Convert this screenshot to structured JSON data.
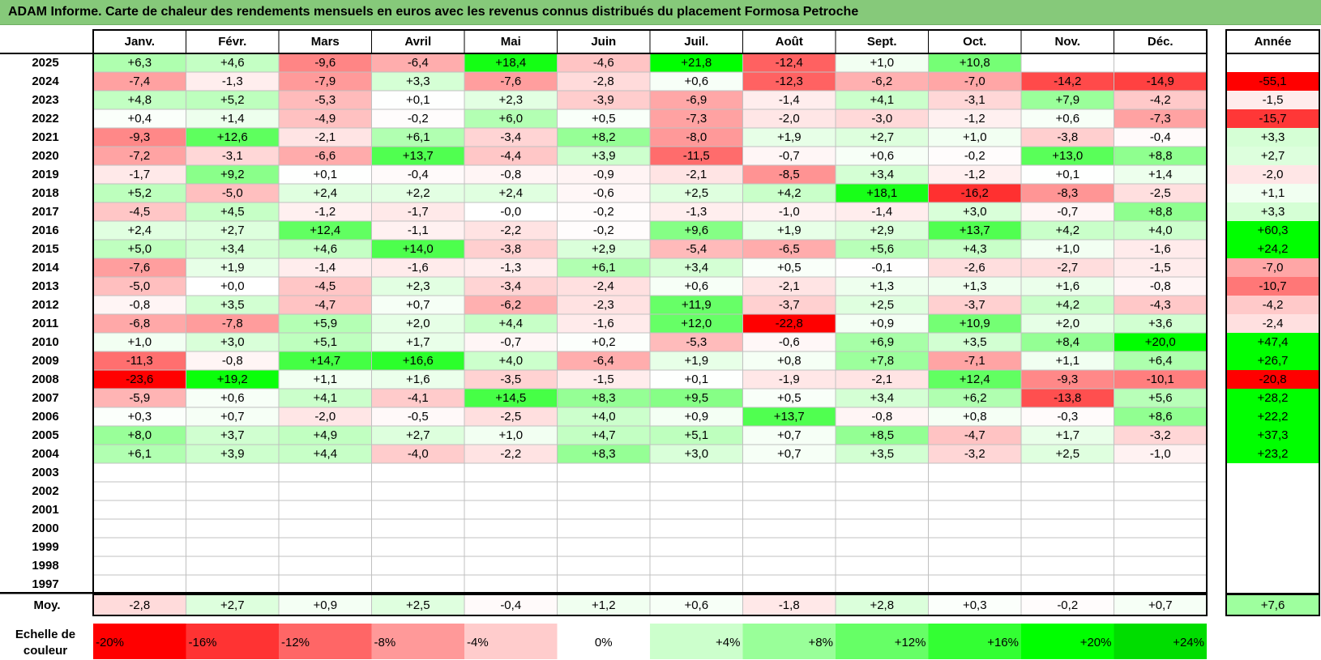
{
  "title": "ADAM Informe. Carte de chaleur des rendements mensuels en euros avec les revenus connus distribués du placement Formosa Petroche",
  "chart_data": {
    "type": "heatmap",
    "columns": [
      "Janv.",
      "Févr.",
      "Mars",
      "Avril",
      "Mai",
      "Juin",
      "Juil.",
      "Août",
      "Sept.",
      "Oct.",
      "Nov.",
      "Déc."
    ],
    "year_column": "Année",
    "rows": [
      {
        "year": "2025",
        "values": [
          "+6,3",
          "+4,6",
          "-9,6",
          "-6,4",
          "+18,4",
          "-4,6",
          "+21,8",
          "-12,4",
          "+1,0",
          "+10,8",
          "",
          ""
        ],
        "annual": ""
      },
      {
        "year": "2024",
        "values": [
          "-7,4",
          "-1,3",
          "-7,9",
          "+3,3",
          "-7,6",
          "-2,8",
          "+0,6",
          "-12,3",
          "-6,2",
          "-7,0",
          "-14,2",
          "-14,9"
        ],
        "annual": "-55,1"
      },
      {
        "year": "2023",
        "values": [
          "+4,8",
          "+5,2",
          "-5,3",
          "+0,1",
          "+2,3",
          "-3,9",
          "-6,9",
          "-1,4",
          "+4,1",
          "-3,1",
          "+7,9",
          "-4,2"
        ],
        "annual": "-1,5"
      },
      {
        "year": "2022",
        "values": [
          "+0,4",
          "+1,4",
          "-4,9",
          "-0,2",
          "+6,0",
          "+0,5",
          "-7,3",
          "-2,0",
          "-3,0",
          "-1,2",
          "+0,6",
          "-7,3"
        ],
        "annual": "-15,7"
      },
      {
        "year": "2021",
        "values": [
          "-9,3",
          "+12,6",
          "-2,1",
          "+6,1",
          "-3,4",
          "+8,2",
          "-8,0",
          "+1,9",
          "+2,7",
          "+1,0",
          "-3,8",
          "-0,4"
        ],
        "annual": "+3,3"
      },
      {
        "year": "2020",
        "values": [
          "-7,2",
          "-3,1",
          "-6,6",
          "+13,7",
          "-4,4",
          "+3,9",
          "-11,5",
          "-0,7",
          "+0,6",
          "-0,2",
          "+13,0",
          "+8,8"
        ],
        "annual": "+2,7"
      },
      {
        "year": "2019",
        "values": [
          "-1,7",
          "+9,2",
          "+0,1",
          "-0,4",
          "-0,8",
          "-0,9",
          "-2,1",
          "-8,5",
          "+3,4",
          "-1,2",
          "+0,1",
          "+1,4"
        ],
        "annual": "-2,0"
      },
      {
        "year": "2018",
        "values": [
          "+5,2",
          "-5,0",
          "+2,4",
          "+2,2",
          "+2,4",
          "-0,6",
          "+2,5",
          "+4,2",
          "+18,1",
          "-16,2",
          "-8,3",
          "-2,5"
        ],
        "annual": "+1,1"
      },
      {
        "year": "2017",
        "values": [
          "-4,5",
          "+4,5",
          "-1,2",
          "-1,7",
          "-0,0",
          "-0,2",
          "-1,3",
          "-1,0",
          "-1,4",
          "+3,0",
          "-0,7",
          "+8,8"
        ],
        "annual": "+3,3"
      },
      {
        "year": "2016",
        "values": [
          "+2,4",
          "+2,7",
          "+12,4",
          "-1,1",
          "-2,2",
          "-0,2",
          "+9,6",
          "+1,9",
          "+2,9",
          "+13,7",
          "+4,2",
          "+4,0"
        ],
        "annual": "+60,3"
      },
      {
        "year": "2015",
        "values": [
          "+5,0",
          "+3,4",
          "+4,6",
          "+14,0",
          "-3,8",
          "+2,9",
          "-5,4",
          "-6,5",
          "+5,6",
          "+4,3",
          "+1,0",
          "-1,6"
        ],
        "annual": "+24,2"
      },
      {
        "year": "2014",
        "values": [
          "-7,6",
          "+1,9",
          "-1,4",
          "-1,6",
          "-1,3",
          "+6,1",
          "+3,4",
          "+0,5",
          "-0,1",
          "-2,6",
          "-2,7",
          "-1,5"
        ],
        "annual": "-7,0"
      },
      {
        "year": "2013",
        "values": [
          "-5,0",
          "+0,0",
          "-4,5",
          "+2,3",
          "-3,4",
          "-2,4",
          "+0,6",
          "-2,1",
          "+1,3",
          "+1,3",
          "+1,6",
          "-0,8"
        ],
        "annual": "-10,7"
      },
      {
        "year": "2012",
        "values": [
          "-0,8",
          "+3,5",
          "-4,7",
          "+0,7",
          "-6,2",
          "-2,3",
          "+11,9",
          "-3,7",
          "+2,5",
          "-3,7",
          "+4,2",
          "-4,3"
        ],
        "annual": "-4,2"
      },
      {
        "year": "2011",
        "values": [
          "-6,8",
          "-7,8",
          "+5,9",
          "+2,0",
          "+4,4",
          "-1,6",
          "+12,0",
          "-22,8",
          "+0,9",
          "+10,9",
          "+2,0",
          "+3,6"
        ],
        "annual": "-2,4"
      },
      {
        "year": "2010",
        "values": [
          "+1,0",
          "+3,0",
          "+5,1",
          "+1,7",
          "-0,7",
          "+0,2",
          "-5,3",
          "-0,6",
          "+6,9",
          "+3,5",
          "+8,4",
          "+20,0"
        ],
        "annual": "+47,4"
      },
      {
        "year": "2009",
        "values": [
          "-11,3",
          "-0,8",
          "+14,7",
          "+16,6",
          "+4,0",
          "-6,4",
          "+1,9",
          "+0,8",
          "+7,8",
          "-7,1",
          "+1,1",
          "+6,4"
        ],
        "annual": "+26,7"
      },
      {
        "year": "2008",
        "values": [
          "-23,6",
          "+19,2",
          "+1,1",
          "+1,6",
          "-3,5",
          "-1,5",
          "+0,1",
          "-1,9",
          "-2,1",
          "+12,4",
          "-9,3",
          "-10,1"
        ],
        "annual": "-20,8"
      },
      {
        "year": "2007",
        "values": [
          "-5,9",
          "+0,6",
          "+4,1",
          "-4,1",
          "+14,5",
          "+8,3",
          "+9,5",
          "+0,5",
          "+3,4",
          "+6,2",
          "-13,8",
          "+5,6"
        ],
        "annual": "+28,2"
      },
      {
        "year": "2006",
        "values": [
          "+0,3",
          "+0,7",
          "-2,0",
          "-0,5",
          "-2,5",
          "+4,0",
          "+0,9",
          "+13,7",
          "-0,8",
          "+0,8",
          "-0,3",
          "+8,6"
        ],
        "annual": "+22,2"
      },
      {
        "year": "2005",
        "values": [
          "+8,0",
          "+3,7",
          "+4,9",
          "+2,7",
          "+1,0",
          "+4,7",
          "+5,1",
          "+0,7",
          "+8,5",
          "-4,7",
          "+1,7",
          "-3,2"
        ],
        "annual": "+37,3"
      },
      {
        "year": "2004",
        "values": [
          "+6,1",
          "+3,9",
          "+4,4",
          "-4,0",
          "-2,2",
          "+8,3",
          "+3,0",
          "+0,7",
          "+3,5",
          "-3,2",
          "+2,5",
          "-1,0"
        ],
        "annual": "+23,2"
      },
      {
        "year": "2003",
        "values": [
          "",
          "",
          "",
          "",
          "",
          "",
          "",
          "",
          "",
          "",
          "",
          ""
        ],
        "annual": ""
      },
      {
        "year": "2002",
        "values": [
          "",
          "",
          "",
          "",
          "",
          "",
          "",
          "",
          "",
          "",
          "",
          ""
        ],
        "annual": ""
      },
      {
        "year": "2001",
        "values": [
          "",
          "",
          "",
          "",
          "",
          "",
          "",
          "",
          "",
          "",
          "",
          ""
        ],
        "annual": ""
      },
      {
        "year": "2000",
        "values": [
          "",
          "",
          "",
          "",
          "",
          "",
          "",
          "",
          "",
          "",
          "",
          ""
        ],
        "annual": ""
      },
      {
        "year": "1999",
        "values": [
          "",
          "",
          "",
          "",
          "",
          "",
          "",
          "",
          "",
          "",
          "",
          ""
        ],
        "annual": ""
      },
      {
        "year": "1998",
        "values": [
          "",
          "",
          "",
          "",
          "",
          "",
          "",
          "",
          "",
          "",
          "",
          ""
        ],
        "annual": ""
      },
      {
        "year": "1997",
        "values": [
          "",
          "",
          "",
          "",
          "",
          "",
          "",
          "",
          "",
          "",
          "",
          ""
        ],
        "annual": ""
      }
    ],
    "average": {
      "label": "Moy.",
      "values": [
        "-2,8",
        "+2,7",
        "+0,9",
        "+2,5",
        "-0,4",
        "+1,2",
        "+0,6",
        "-1,8",
        "+2,8",
        "+0,3",
        "-0,2",
        "+0,7"
      ],
      "annual": "+7,6"
    },
    "color_scale": {
      "label": "Echelle de couleur",
      "stops": [
        {
          "label": "-20%",
          "value": -20,
          "color": "#ff0000"
        },
        {
          "label": "-16%",
          "value": -16,
          "color": "#ff3333"
        },
        {
          "label": "-12%",
          "value": -12,
          "color": "#ff6666"
        },
        {
          "label": "-8%",
          "value": -8,
          "color": "#ff9999"
        },
        {
          "label": "-4%",
          "value": -4,
          "color": "#ffcccc"
        },
        {
          "label": "0%",
          "value": 0,
          "color": "#ffffff"
        },
        {
          "label": "+4%",
          "value": 4,
          "color": "#ccffcc"
        },
        {
          "label": "+8%",
          "value": 8,
          "color": "#99ff99"
        },
        {
          "label": "+12%",
          "value": 12,
          "color": "#66ff66"
        },
        {
          "label": "+16%",
          "value": 16,
          "color": "#33ff33"
        },
        {
          "label": "+20%",
          "value": 20,
          "color": "#00ff00"
        },
        {
          "label": "+24%",
          "value": 24,
          "color": "#00dd00"
        }
      ]
    }
  }
}
